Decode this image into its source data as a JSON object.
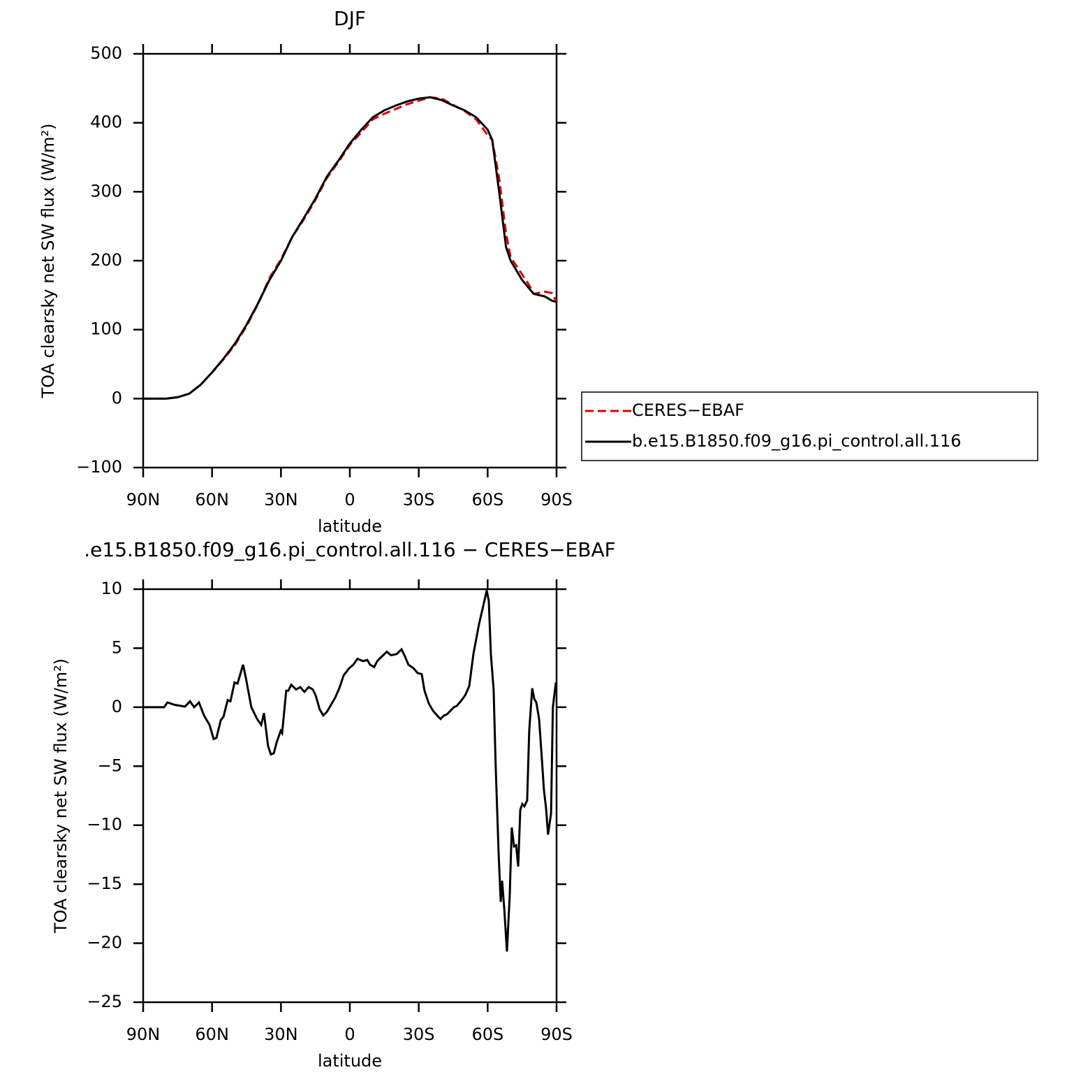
{
  "chart_data": [
    {
      "type": "line",
      "title": "DJF",
      "xlabel": "latitude",
      "ylabel": "TOA clearsky net SW flux (W/m²)",
      "xlim": [
        90,
        -90
      ],
      "xticks": [
        {
          "value": 90,
          "label": "90N"
        },
        {
          "value": 60,
          "label": "60N"
        },
        {
          "value": 30,
          "label": "30N"
        },
        0,
        {
          "value": -30,
          "label": "30S"
        },
        {
          "value": -60,
          "label": "60S"
        },
        {
          "value": -90,
          "label": "90S"
        }
      ],
      "ylim": [
        -100,
        500
      ],
      "yticks": [
        {
          "value": -100,
          "label": "−100"
        },
        0,
        100,
        200,
        300,
        400,
        500
      ],
      "legend": "right",
      "x": [
        90,
        85,
        80,
        75,
        70,
        65,
        60,
        55,
        50,
        45,
        40,
        35,
        30,
        25,
        20,
        15,
        10,
        5,
        0,
        -5,
        -10,
        -15,
        -20,
        -25,
        -30,
        -35,
        -40,
        -45,
        -50,
        -55,
        -60,
        -62,
        -65,
        -68,
        -70,
        -75,
        -78,
        -80,
        -85,
        -88,
        -90
      ],
      "series": [
        {
          "name": "CERES−EBAF",
          "color": "#e00000",
          "linestyle": "dashed",
          "values": [
            0,
            0,
            0,
            2,
            7,
            20,
            38,
            57,
            78,
            105,
            137,
            175,
            202,
            235,
            260,
            288,
            320,
            343,
            368,
            386,
            405,
            413,
            420,
            427,
            432,
            437,
            435,
            426,
            417,
            405,
            382,
            375,
            320,
            240,
            205,
            180,
            165,
            152,
            155,
            153,
            140
          ]
        },
        {
          "name": "b.e15.B1850.f09_g16.pi_control.all.116",
          "color": "#000000",
          "linestyle": "solid",
          "values": [
            0,
            0,
            0,
            2,
            7,
            20,
            38,
            58,
            80,
            107,
            138,
            172,
            200,
            235,
            262,
            290,
            322,
            345,
            370,
            390,
            408,
            418,
            425,
            431,
            435,
            437,
            433,
            425,
            418,
            408,
            390,
            375,
            300,
            220,
            200,
            172,
            160,
            152,
            148,
            142,
            140
          ]
        }
      ]
    },
    {
      "type": "line",
      "title": ".e15.B1850.f09_g16.pi_control.all.116 − CERES−EBAF",
      "xlabel": "latitude",
      "ylabel": "TOA clearsky net SW flux (W/m²)",
      "xlim": [
        90,
        -90
      ],
      "xticks": [
        {
          "value": 90,
          "label": "90N"
        },
        {
          "value": 60,
          "label": "60N"
        },
        {
          "value": 30,
          "label": "30N"
        },
        0,
        {
          "value": -30,
          "label": "30S"
        },
        {
          "value": -60,
          "label": "60S"
        },
        {
          "value": -90,
          "label": "90S"
        }
      ],
      "ylim": [
        -25,
        10
      ],
      "yticks": [
        {
          "value": -25,
          "label": "−25"
        },
        {
          "value": -20,
          "label": "−20"
        },
        {
          "value": -15,
          "label": "−15"
        },
        {
          "value": -10,
          "label": "−10"
        },
        {
          "value": -5,
          "label": "−5"
        },
        0,
        5,
        10
      ],
      "color": "#000000",
      "x": [
        90,
        80.9,
        79.4,
        76.3,
        71.8,
        69.6,
        67.8,
        65.7,
        63.5,
        61.1,
        59.3,
        58.1,
        56.2,
        55.0,
        53.2,
        52.0,
        50.2,
        48.9,
        46.5,
        45.3,
        42.9,
        40.4,
        38.6,
        37.4,
        35.6,
        34.4,
        33.1,
        31.9,
        30.1,
        29.5,
        27.7,
        26.8,
        25.5,
        23.4,
        21.6,
        19.8,
        17.9,
        16.1,
        14.9,
        13.1,
        11.6,
        10.0,
        8.8,
        6.4,
        4.6,
        2.7,
        0.3,
        -1.5,
        -3.3,
        -5.8,
        -7.6,
        -8.8,
        -10.6,
        -11.9,
        -13.4,
        -16.1,
        -17.9,
        -20.4,
        -22.5,
        -24.0,
        -25.5,
        -27.7,
        -29.5,
        -31.3,
        -32.5,
        -34.4,
        -36.2,
        -38.0,
        -39.5,
        -41.0,
        -42.3,
        -43.8,
        -45.3,
        -46.5,
        -48.3,
        -50.2,
        -52.0,
        -53.8,
        -56.2,
        -58.1,
        -59.6,
        -60.5,
        -61.4,
        -62.6,
        -63.5,
        -64.8,
        -65.7,
        -66.3,
        -67.2,
        -68.4,
        -69.6,
        -70.5,
        -71.5,
        -72.4,
        -73.3,
        -74.2,
        -75.1,
        -76.0,
        -77.2,
        -78.1,
        -79.4,
        -80.3,
        -81.2,
        -82.4,
        -83.3,
        -84.5,
        -85.4,
        -86.3,
        -87.6,
        -88.4,
        -89.7
      ],
      "values": [
        0,
        0,
        0.4,
        0.2,
        0.05,
        0.5,
        0,
        0.4,
        -0.7,
        -1.5,
        -2.7,
        -2.6,
        -1.1,
        -0.8,
        0.6,
        0.5,
        2.1,
        2.0,
        3.6,
        2.5,
        0,
        -1.0,
        -1.5,
        -0.5,
        -3.3,
        -4.0,
        -3.9,
        -3,
        -2,
        -2.2,
        1.4,
        1.4,
        1.9,
        1.5,
        1.7,
        1.3,
        1.7,
        1.5,
        1.0,
        -0.2,
        -0.7,
        -0.4,
        0,
        0.8,
        1.6,
        2.7,
        3.3,
        3.6,
        4.1,
        3.9,
        4.0,
        3.6,
        3.4,
        3.9,
        4.2,
        4.7,
        4.4,
        4.5,
        4.9,
        4.3,
        3.6,
        3.3,
        2.9,
        2.8,
        1.4,
        0.3,
        -0.3,
        -0.7,
        -1.0,
        -0.7,
        -0.6,
        -0.3,
        0,
        0.1,
        0.5,
        1.0,
        1.8,
        4.5,
        7.0,
        8.6,
        9.9,
        9.0,
        4.5,
        1.5,
        -5,
        -12.5,
        -16.5,
        -14.7,
        -17,
        -20.7,
        -16,
        -10.2,
        -11.8,
        -11.7,
        -13.5,
        -8.7,
        -8.2,
        -8.4,
        -7.9,
        -2,
        1.6,
        0.7,
        0.4,
        -1.0,
        -3.5,
        -7,
        -8.5,
        -10.8,
        -9,
        0,
        2.1
      ]
    }
  ]
}
